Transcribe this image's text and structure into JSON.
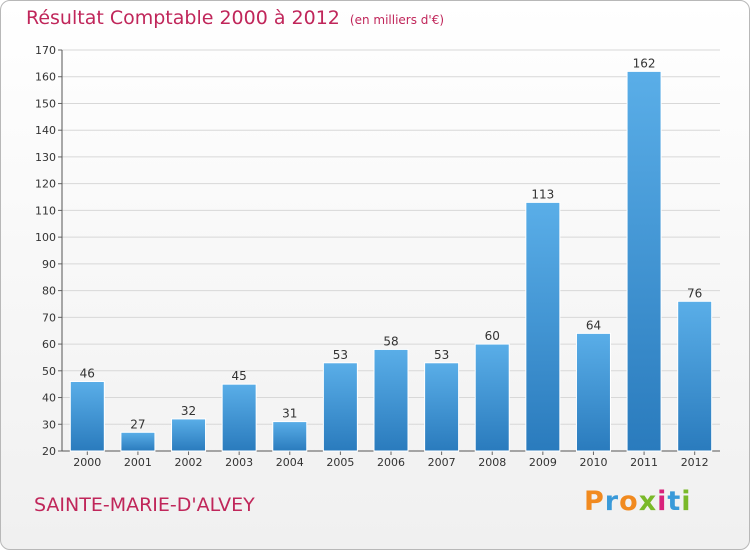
{
  "header": {
    "title": "Résultat Comptable 2000 à 2012",
    "subtitle": "(en milliers d'€)"
  },
  "footer": {
    "commune": "SAINTE-MARIE-D'ALVEY",
    "logo_letters": [
      "P",
      "r",
      "o",
      "x",
      "i",
      "t",
      "i"
    ],
    "logo_colors": [
      "#f18a1f",
      "#3a9ad9",
      "#f18a1f",
      "#7ab929",
      "#d9227b",
      "#3a9ad9",
      "#7ab929"
    ]
  },
  "colors": {
    "bar_top": "#5aaee8",
    "bar_bottom": "#2a7bbd",
    "title": "#c0265a",
    "grid": "#d8d8d8"
  },
  "chart_data": {
    "type": "bar",
    "title": "Résultat Comptable 2000 à 2012",
    "subtitle": "(en milliers d'€)",
    "xlabel": "",
    "ylabel": "",
    "categories": [
      "2000",
      "2001",
      "2002",
      "2003",
      "2004",
      "2005",
      "2006",
      "2007",
      "2008",
      "2009",
      "2010",
      "2011",
      "2012"
    ],
    "values": [
      46,
      27,
      32,
      45,
      31,
      53,
      58,
      53,
      60,
      113,
      64,
      162,
      76
    ],
    "ylim": [
      20,
      170
    ],
    "yticks": [
      20,
      30,
      40,
      50,
      60,
      70,
      80,
      90,
      100,
      110,
      120,
      130,
      140,
      150,
      160,
      170
    ],
    "grid": true,
    "data_labels": true
  }
}
